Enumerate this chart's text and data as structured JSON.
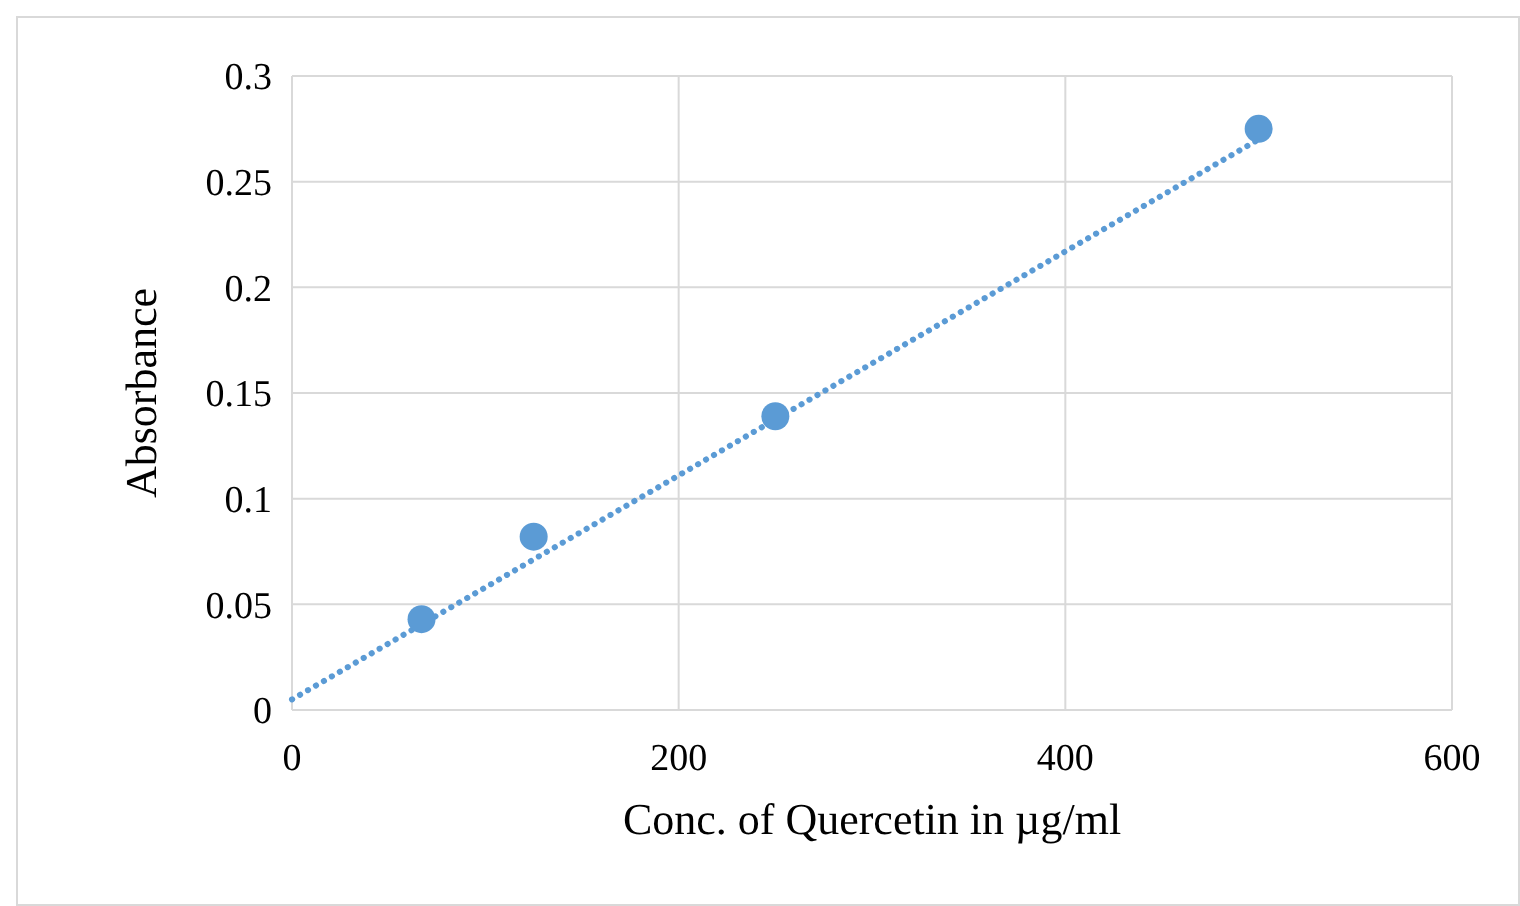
{
  "chart_data": {
    "type": "scatter",
    "xlabel": "Conc. of Quercetin in µg/ml",
    "ylabel": "Absorbance",
    "xlim": [
      0,
      600
    ],
    "xticks": [
      0,
      200,
      400,
      600
    ],
    "ylim": [
      0,
      0.3
    ],
    "yticks": [
      0,
      0.05,
      0.1,
      0.15,
      0.2,
      0.25,
      0.3
    ],
    "grid": true,
    "series": [
      {
        "color": "#5b9bd5",
        "marker": "circle",
        "x": [
          67,
          125,
          250,
          500
        ],
        "values": [
          0.043,
          0.082,
          0.139,
          0.275
        ]
      },
      {
        "type": "line",
        "color": "#5b9bd5",
        "line_style": "dotted",
        "x": [
          0,
          500
        ],
        "values": [
          0.005,
          0.27
        ]
      }
    ]
  }
}
